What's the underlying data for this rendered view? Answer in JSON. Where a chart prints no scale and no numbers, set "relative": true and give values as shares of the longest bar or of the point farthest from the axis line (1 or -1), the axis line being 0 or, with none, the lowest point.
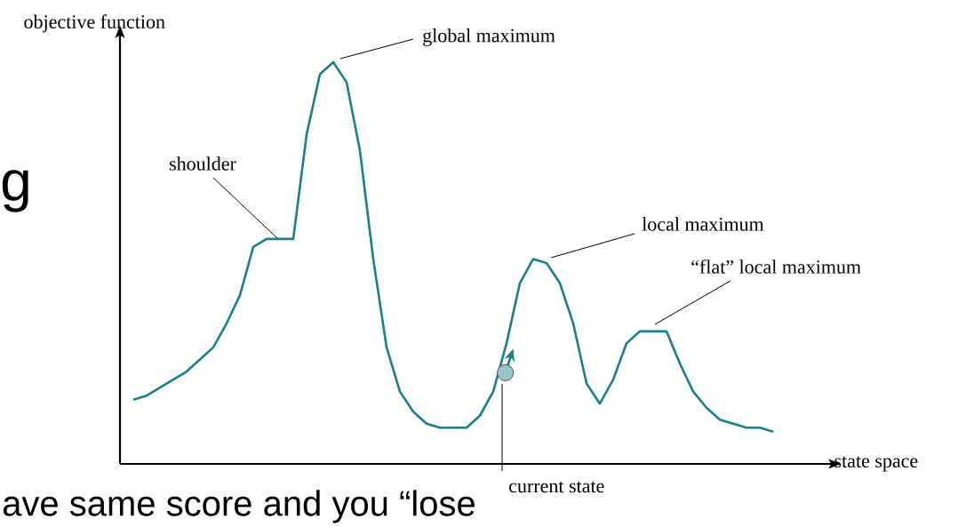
{
  "chart_data": {
    "type": "line",
    "relative": true,
    "xlabel": "state space",
    "ylabel": "objective function",
    "categories": [
      null,
      null,
      null,
      null,
      null,
      null,
      null,
      null,
      null,
      null,
      null,
      null,
      null,
      null,
      null,
      null,
      null,
      null,
      null,
      null,
      null,
      null,
      null,
      null,
      null,
      null,
      null,
      null,
      null,
      null,
      null,
      null,
      null,
      null,
      null,
      null,
      null,
      null,
      null,
      null,
      null,
      null,
      null,
      null,
      null,
      null,
      null,
      null,
      null
    ],
    "series": [
      {
        "color": "#1a7f86",
        "values": [
          0.16,
          0.17,
          0.19,
          0.21,
          0.23,
          0.26,
          0.29,
          0.35,
          0.42,
          0.54,
          0.56,
          0.56,
          0.56,
          0.82,
          0.97,
          1.0,
          0.95,
          0.78,
          0.51,
          0.29,
          0.18,
          0.13,
          0.1,
          0.09,
          0.09,
          0.09,
          0.12,
          0.18,
          0.3,
          0.45,
          0.51,
          0.5,
          0.45,
          0.35,
          0.2,
          0.15,
          0.21,
          0.3,
          0.33,
          0.33,
          0.33,
          0.25,
          0.18,
          0.14,
          0.11,
          0.1,
          0.09,
          0.09,
          0.08
        ]
      }
    ],
    "annotations": [
      "global maximum",
      "shoulder",
      "local maximum",
      "“flat” local maximum",
      "current state",
      "g",
      "ave same score and you “lose"
    ]
  }
}
